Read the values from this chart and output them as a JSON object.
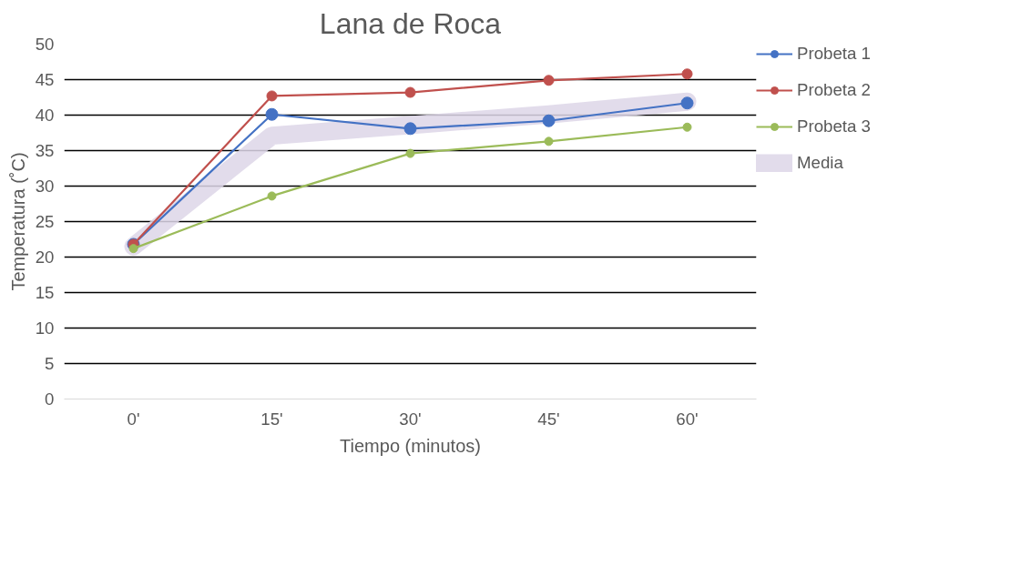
{
  "chart_data": {
    "type": "line",
    "title": "Lana de Roca",
    "xlabel": "Tiempo (minutos)",
    "ylabel": "Temperatura (˚C)",
    "categories": [
      "0'",
      "15'",
      "30'",
      "45'",
      "60'"
    ],
    "ylim": [
      0,
      50
    ],
    "yticks": [
      0,
      5,
      10,
      15,
      20,
      25,
      30,
      35,
      40,
      45,
      50
    ],
    "grid": "y",
    "legend": "right",
    "marker": "circle",
    "line_style": "solid",
    "series": [
      {
        "name": "Probeta 1",
        "color": "#4472c4",
        "values": [
          21.8,
          40.1,
          38.1,
          39.2,
          41.7
        ]
      },
      {
        "name": "Probeta 2",
        "color": "#c0504d",
        "values": [
          21.8,
          42.7,
          43.2,
          44.9,
          45.8
        ]
      },
      {
        "name": "Probeta 3",
        "color": "#9bbb59",
        "values": [
          21.2,
          28.6,
          34.6,
          36.3,
          38.3
        ]
      },
      {
        "name": "Media",
        "color": "#ddd6e8",
        "marker": "none",
        "values": [
          21.5,
          37.1,
          38.6,
          40.1,
          41.9
        ]
      }
    ]
  }
}
